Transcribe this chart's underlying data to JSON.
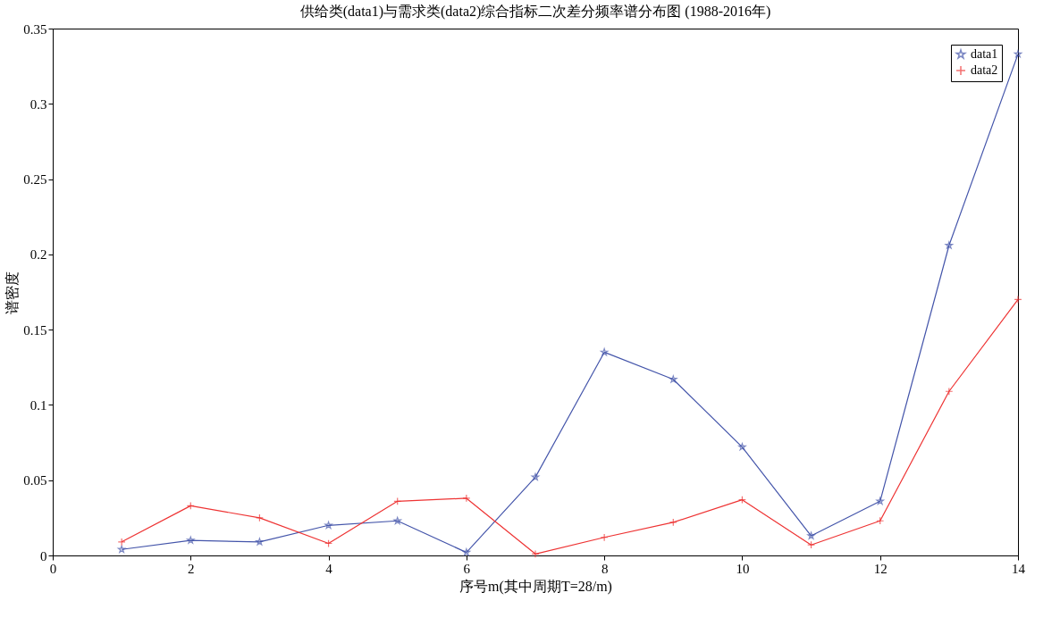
{
  "chart_data": {
    "type": "line",
    "title": "供给类(data1)与需求类(data2)综合指标二次差分频率谱分布图 (1988-2016年)",
    "xlabel": "序号m(其中周期T=28/m)",
    "ylabel": "谱密度",
    "x": [
      1,
      2,
      3,
      4,
      5,
      6,
      7,
      8,
      9,
      10,
      11,
      12,
      13,
      14
    ],
    "series": [
      {
        "name": "data1",
        "color": "#4455aa",
        "marker": "star",
        "values": [
          0.004,
          0.01,
          0.009,
          0.02,
          0.023,
          0.002,
          0.052,
          0.135,
          0.117,
          0.072,
          0.013,
          0.036,
          0.206,
          0.333
        ]
      },
      {
        "name": "data2",
        "color": "#ee3333",
        "marker": "cross",
        "values": [
          0.009,
          0.033,
          0.025,
          0.008,
          0.036,
          0.038,
          0.001,
          0.012,
          0.022,
          0.037,
          0.007,
          0.023,
          0.109,
          0.17
        ]
      }
    ],
    "xlim": [
      0,
      14
    ],
    "xticks": [
      0,
      2,
      4,
      6,
      8,
      10,
      12,
      14
    ],
    "ylim": [
      0,
      0.35
    ],
    "yticks": [
      0,
      0.05,
      0.1,
      0.15,
      0.2,
      0.25,
      0.3,
      0.35
    ],
    "grid": false,
    "legend": "top right",
    "line_style": "solid"
  }
}
